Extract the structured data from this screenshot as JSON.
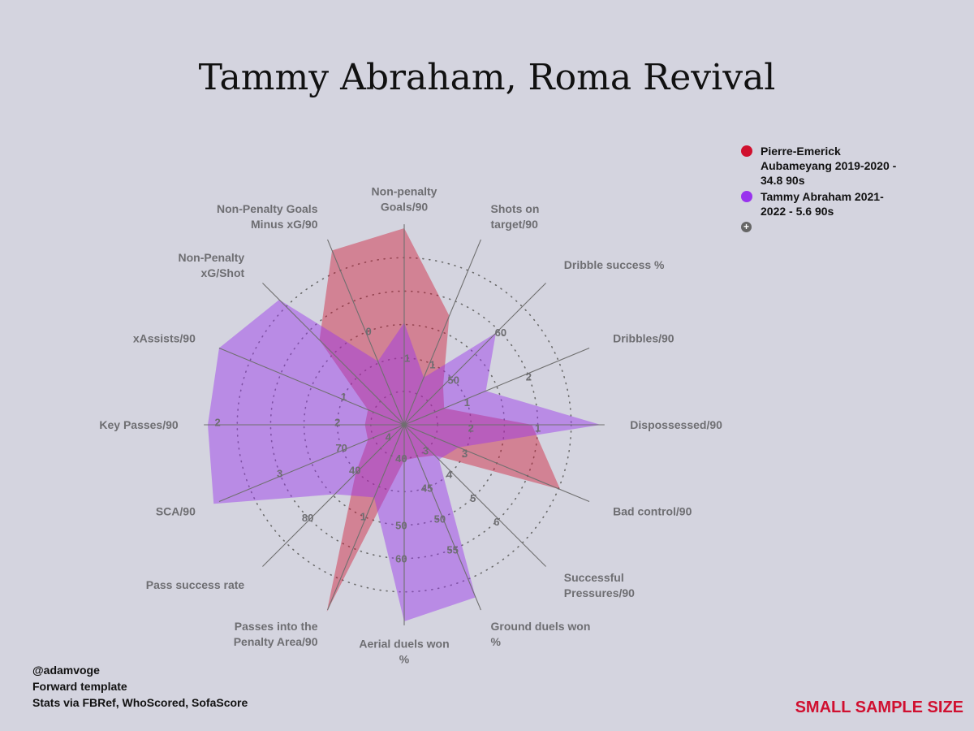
{
  "title": "Tammy Abraham, Roma Revival",
  "legend": {
    "items": [
      {
        "label": "Pierre-Emerick Aubameyang 2019-2020 - 34.8 90s",
        "color": "#d0102e"
      },
      {
        "label": "Tammy Abraham 2021-2022 - 5.6 90s",
        "color": "#9933ee"
      }
    ],
    "more_icon": "plus-circle-icon"
  },
  "credits": {
    "line1": "@adamvoge",
    "line2": "Forward template",
    "line3": "Stats via FBRef, WhoScored, SofaScore"
  },
  "warning": "SMALL SAMPLE SIZE",
  "chart_data": {
    "type": "radar",
    "title": "Tammy Abraham, Roma Revival",
    "axes": [
      {
        "label": [
          "Non-penalty",
          "Goals/90"
        ],
        "ticks": [
          {
            "text": "1",
            "r": 0.34
          }
        ]
      },
      {
        "label": [
          "Shots on",
          "target/90"
        ],
        "ticks": [
          {
            "text": "1",
            "r": 0.34
          }
        ]
      },
      {
        "label": [
          "Dribble success %"
        ],
        "ticks": [
          {
            "text": "50",
            "r": 0.34
          },
          {
            "text": "60",
            "r": 0.68
          }
        ]
      },
      {
        "label": [
          "Dribbles/90"
        ],
        "ticks": [
          {
            "text": "1",
            "r": 0.34
          },
          {
            "text": "2",
            "r": 0.68
          }
        ]
      },
      {
        "label": [
          "Dispossessed/90"
        ],
        "ticks": [
          {
            "text": "2",
            "r": 0.34
          },
          {
            "text": "1",
            "r": 0.68
          }
        ]
      },
      {
        "label": [
          "Bad control/90"
        ],
        "ticks": [
          {
            "text": "3",
            "r": 0.34
          }
        ]
      },
      {
        "label": [
          "Successful",
          "Pressures/90"
        ],
        "ticks": [
          {
            "text": "3",
            "r": 0.17
          },
          {
            "text": "4",
            "r": 0.34
          },
          {
            "text": "5",
            "r": 0.51
          },
          {
            "text": "6",
            "r": 0.68
          }
        ]
      },
      {
        "label": [
          "Ground duels won",
          "%"
        ],
        "ticks": [
          {
            "text": "45",
            "r": 0.34
          },
          {
            "text": "50",
            "r": 0.51
          },
          {
            "text": "55",
            "r": 0.68
          }
        ]
      },
      {
        "label": [
          "Aerial duels won",
          "%"
        ],
        "ticks": [
          {
            "text": "40",
            "r": 0.17
          },
          {
            "text": "50",
            "r": 0.51
          },
          {
            "text": "60",
            "r": 0.68
          }
        ]
      },
      {
        "label": [
          "Passes into the",
          "Penalty Area/90"
        ],
        "ticks": [
          {
            "text": "1",
            "r": 0.51
          }
        ]
      },
      {
        "label": [
          "Pass success rate"
        ],
        "ticks": [
          {
            "text": "40",
            "r": 0.34
          },
          {
            "text": "4",
            "r": 0.1
          },
          {
            "text": "80",
            "r": 0.68
          }
        ]
      },
      {
        "label": [
          "SCA/90"
        ],
        "ticks": [
          {
            "text": "70",
            "r": 0.34
          },
          {
            "text": "3",
            "r": 0.68
          }
        ]
      },
      {
        "label": [
          "Key Passes/90"
        ],
        "ticks": [
          {
            "text": "2",
            "r": 0.34
          },
          {
            "text": "2",
            "r": 0.95
          }
        ]
      },
      {
        "label": [
          "xAssists/90"
        ],
        "ticks": [
          {
            "text": "1",
            "r": 0.34
          }
        ]
      },
      {
        "label": [
          "Non-Penalty",
          "xG/Shot"
        ],
        "ticks": []
      },
      {
        "label": [
          "Non-Penalty Goals",
          "Minus xG/90"
        ],
        "ticks": [
          {
            "text": "0",
            "r": 0.51
          }
        ]
      }
    ],
    "series": [
      {
        "name": "Pierre-Emerick Aubameyang 2019-2020 - 34.8 90s",
        "color": "#d0102e",
        "values": [
          1.0,
          0.6,
          0.28,
          0.22,
          0.65,
          0.86,
          0.22,
          0.18,
          0.18,
          1.03,
          0.35,
          0.2,
          0.2,
          0.2,
          0.61,
          0.96
        ]
      },
      {
        "name": "Tammy Abraham 2021-2022 - 5.6 90s",
        "color": "#9933ee",
        "values": [
          0.52,
          0.26,
          0.66,
          0.45,
          1.0,
          0.3,
          0.25,
          0.95,
          1.0,
          0.4,
          0.5,
          1.05,
          1.0,
          1.02,
          0.9,
          0.35
        ]
      }
    ],
    "grid": true,
    "legend_position": "top-right"
  }
}
